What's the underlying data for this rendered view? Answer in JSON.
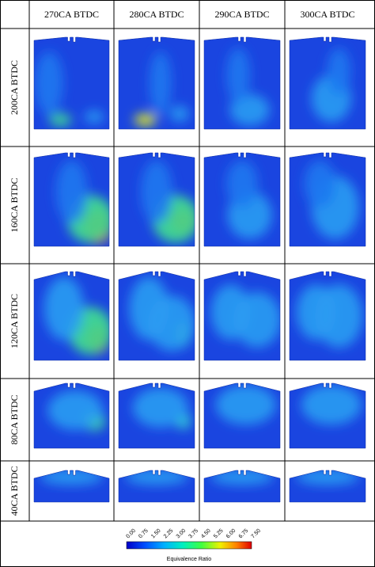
{
  "header": {
    "columns": [
      "270CA BTDC",
      "280CA BTDC",
      "290CA BTDC",
      "300CA BTDC"
    ]
  },
  "rows": [
    "200CA BTDC",
    "160CA BTDC",
    "120CA BTDC",
    "80CA BTDC",
    "40CA BTDC"
  ],
  "colorbar": {
    "ticks": [
      "0.00",
      "0.75",
      "1.50",
      "2.25",
      "3.00",
      "3.75",
      "4.50",
      "5.25",
      "6.00",
      "6.75",
      "7.50"
    ],
    "label": "Equivalence Ratio"
  }
}
